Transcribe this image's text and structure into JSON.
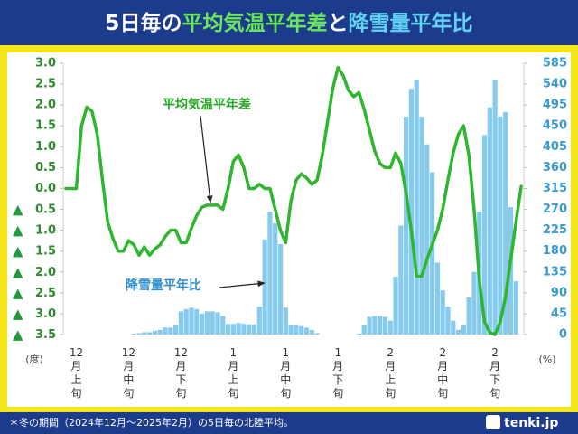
{
  "chart_data": {
    "type": "combo",
    "title_parts": [
      {
        "text": "5日毎の",
        "color": "#ffffff"
      },
      {
        "text": "平均気温平年差",
        "color": "#6be65a"
      },
      {
        "text": "と",
        "color": "#ffffff"
      },
      {
        "text": "降雪量平年比",
        "color": "#62d2f7"
      }
    ],
    "y_label": "(度)",
    "y2_label": "(%)",
    "categories": [
      null,
      null,
      "12月上旬",
      null,
      null,
      null,
      null,
      null,
      null,
      null,
      null,
      null,
      "12月中旬",
      null,
      null,
      null,
      null,
      null,
      null,
      null,
      null,
      null,
      "12月下旬",
      null,
      null,
      null,
      null,
      null,
      null,
      null,
      null,
      null,
      "1月上旬",
      null,
      null,
      null,
      null,
      null,
      null,
      null,
      null,
      null,
      "1月中旬",
      null,
      null,
      null,
      null,
      null,
      null,
      null,
      null,
      null,
      "1月下旬",
      null,
      null,
      null,
      null,
      null,
      null,
      null,
      null,
      null,
      "2月上旬",
      null,
      null,
      null,
      null,
      null,
      null,
      null,
      null,
      null,
      "2月中旬",
      null,
      null,
      null,
      null,
      null,
      null,
      null,
      null,
      null,
      "2月下旬",
      null,
      null,
      null,
      null,
      null
    ],
    "series": [
      {
        "name": "降雪量平年比",
        "type": "bar",
        "axis": "y2",
        "color": "#86cbee",
        "values": [
          0,
          0,
          0,
          0,
          0,
          0,
          0,
          0,
          0,
          0,
          0,
          0,
          0,
          2,
          3,
          5,
          5,
          8,
          10,
          15,
          15,
          20,
          50,
          55,
          58,
          55,
          45,
          50,
          50,
          48,
          40,
          23,
          23,
          25,
          23,
          22,
          22,
          60,
          205,
          265,
          240,
          195,
          58,
          20,
          20,
          18,
          15,
          10,
          3,
          0,
          0,
          0,
          0,
          0,
          0,
          0,
          2,
          20,
          38,
          40,
          40,
          38,
          30,
          125,
          235,
          470,
          530,
          550,
          470,
          410,
          350,
          155,
          95,
          60,
          30,
          10,
          20,
          80,
          135,
          265,
          430,
          490,
          550,
          470,
          480,
          275,
          115,
          0
        ]
      },
      {
        "name": "平均気温平年差",
        "type": "line",
        "color": "#2fb62f",
        "values": [
          0.0,
          0.0,
          0.0,
          1.5,
          1.95,
          1.85,
          1.3,
          0.2,
          -0.8,
          -1.2,
          -1.5,
          -1.5,
          -1.25,
          -1.35,
          -1.6,
          -1.4,
          -1.6,
          -1.45,
          -1.35,
          -1.15,
          -1.0,
          -1.0,
          -1.3,
          -1.3,
          -0.95,
          -0.65,
          -0.45,
          -0.4,
          -0.4,
          -0.4,
          -0.5,
          0.0,
          0.65,
          0.8,
          0.5,
          0.0,
          0.0,
          0.1,
          0.0,
          0.0,
          -0.5,
          -1.0,
          -1.3,
          -0.3,
          0.2,
          0.35,
          0.25,
          0.1,
          0.2,
          0.8,
          1.6,
          2.4,
          2.9,
          2.7,
          2.35,
          2.2,
          2.3,
          1.9,
          1.4,
          0.9,
          0.6,
          0.5,
          0.5,
          0.85,
          0.6,
          -0.1,
          -1.0,
          -2.1,
          -2.1,
          -1.7,
          -1.35,
          -1.0,
          -0.5,
          0.2,
          0.85,
          1.3,
          1.5,
          0.8,
          -0.5,
          -2.2,
          -3.2,
          -3.45,
          -3.5,
          -3.2,
          -2.6,
          -1.7,
          -0.8,
          0.05
        ]
      }
    ],
    "ylim": [
      -3.5,
      3.0
    ],
    "yticks": [
      {
        "value": 3.0,
        "label": "3.0"
      },
      {
        "value": 2.5,
        "label": "2.5"
      },
      {
        "value": 2.0,
        "label": "2.0"
      },
      {
        "value": 1.5,
        "label": "1.5"
      },
      {
        "value": 1.0,
        "label": "1.0"
      },
      {
        "value": 0.5,
        "label": "0.5"
      },
      {
        "value": 0.0,
        "label": "0.0"
      },
      {
        "value": -0.5,
        "label": "▲ 0.5"
      },
      {
        "value": -1.0,
        "label": "▲ 1.0"
      },
      {
        "value": -1.5,
        "label": "▲ 1.5"
      },
      {
        "value": -2.0,
        "label": "▲ 2.0"
      },
      {
        "value": -2.5,
        "label": "▲ 2.5"
      },
      {
        "value": -3.0,
        "label": "▲ 3.0"
      },
      {
        "value": -3.5,
        "label": "▲ 3.5"
      }
    ],
    "y2lim": [
      0,
      585
    ],
    "y2ticks": [
      585,
      540,
      495,
      450,
      405,
      360,
      315,
      270,
      225,
      180,
      135,
      90,
      45,
      0
    ],
    "annotations": [
      "平均気温平年差",
      "降雪量平年比"
    ],
    "note": "＊冬の期間（2024年12月～2025年2月）の5日毎の北陸平均。",
    "source": "tenki.jp"
  }
}
